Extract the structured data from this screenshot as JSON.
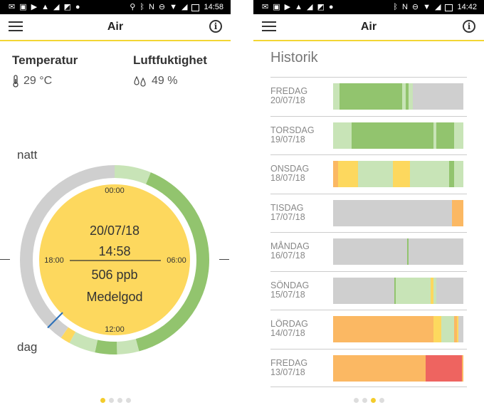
{
  "colors": {
    "accent": "#f3d634",
    "grey": "#cfcfcf",
    "light_green": "#c8e4b7",
    "green": "#92c46e",
    "yellow": "#fdd85e",
    "orange": "#fbb863",
    "red": "#ee6460"
  },
  "left": {
    "status": {
      "time": "14:58"
    },
    "appbar": {
      "title": "Air",
      "info_glyph": "i"
    },
    "temperature": {
      "label": "Temperatur",
      "value": "29 °C",
      "icon": "thermometer-icon"
    },
    "humidity": {
      "label": "Luftfuktighet",
      "value": "49 %",
      "icon": "drops-icon"
    },
    "natt": "natt",
    "dag": "dag",
    "dial": {
      "top": "00:00",
      "left": "18:00",
      "right": "06:00",
      "bottom": "12:00",
      "date": "20/07/18",
      "time": "14:58",
      "value": "506 ppb",
      "quality": "Medelgod"
    },
    "ring_segments": [
      {
        "from_hour": 0.0,
        "to_hour": 1.5,
        "color": "light_green"
      },
      {
        "from_hour": 1.5,
        "to_hour": 11.0,
        "color": "green"
      },
      {
        "from_hour": 11.0,
        "to_hour": 11.9,
        "color": "light_green"
      },
      {
        "from_hour": 11.9,
        "to_hour": 12.8,
        "color": "green"
      },
      {
        "from_hour": 12.8,
        "to_hour": 13.9,
        "color": "light_green"
      },
      {
        "from_hour": 13.9,
        "to_hour": 14.3,
        "color": "yellow"
      },
      {
        "from_hour": 14.3,
        "to_hour": 24.0,
        "color": "grey"
      }
    ],
    "current_hour": 14.97,
    "page_index": 0
  },
  "right": {
    "status": {
      "time": "14:42"
    },
    "appbar": {
      "title": "Air",
      "info_glyph": "i"
    },
    "heading": "Historik",
    "days": [
      {
        "weekday": "FREDAG",
        "date": "20/07/18",
        "segments": [
          {
            "w": 5,
            "c": "light_green"
          },
          {
            "w": 48,
            "c": "green"
          },
          {
            "w": 3,
            "c": "light_green"
          },
          {
            "w": 2,
            "c": "green"
          },
          {
            "w": 3,
            "c": "light_green"
          },
          {
            "w": 39,
            "c": "grey"
          }
        ]
      },
      {
        "weekday": "TORSDAG",
        "date": "19/07/18",
        "segments": [
          {
            "w": 14,
            "c": "light_green"
          },
          {
            "w": 63,
            "c": "green"
          },
          {
            "w": 2,
            "c": "light_green"
          },
          {
            "w": 14,
            "c": "green"
          },
          {
            "w": 7,
            "c": "light_green"
          }
        ]
      },
      {
        "weekday": "ONSDAG",
        "date": "18/07/18",
        "segments": [
          {
            "w": 4,
            "c": "orange"
          },
          {
            "w": 15,
            "c": "yellow"
          },
          {
            "w": 27,
            "c": "light_green"
          },
          {
            "w": 13,
            "c": "yellow"
          },
          {
            "w": 30,
            "c": "light_green"
          },
          {
            "w": 4,
            "c": "green"
          },
          {
            "w": 7,
            "c": "light_green"
          }
        ]
      },
      {
        "weekday": "TISDAG",
        "date": "17/07/18",
        "segments": [
          {
            "w": 91,
            "c": "grey"
          },
          {
            "w": 9,
            "c": "orange"
          }
        ]
      },
      {
        "weekday": "MÅNDAG",
        "date": "16/07/18",
        "segments": [
          {
            "w": 57,
            "c": "grey"
          },
          {
            "w": 1,
            "c": "green"
          },
          {
            "w": 42,
            "c": "grey"
          }
        ]
      },
      {
        "weekday": "SÖNDAG",
        "date": "15/07/18",
        "segments": [
          {
            "w": 47,
            "c": "grey"
          },
          {
            "w": 1,
            "c": "green"
          },
          {
            "w": 27,
            "c": "light_green"
          },
          {
            "w": 2,
            "c": "yellow"
          },
          {
            "w": 2,
            "c": "light_green"
          },
          {
            "w": 21,
            "c": "grey"
          }
        ]
      },
      {
        "weekday": "LÖRDAG",
        "date": "14/07/18",
        "segments": [
          {
            "w": 77,
            "c": "orange"
          },
          {
            "w": 6,
            "c": "yellow"
          },
          {
            "w": 10,
            "c": "light_green"
          },
          {
            "w": 2,
            "c": "orange"
          },
          {
            "w": 1,
            "c": "yellow"
          },
          {
            "w": 4,
            "c": "grey"
          }
        ]
      },
      {
        "weekday": "FREDAG",
        "date": "13/07/18",
        "segments": [
          {
            "w": 71,
            "c": "orange"
          },
          {
            "w": 28,
            "c": "red"
          },
          {
            "w": 1,
            "c": "orange"
          }
        ]
      }
    ],
    "page_index": 2
  },
  "page_count": 4
}
